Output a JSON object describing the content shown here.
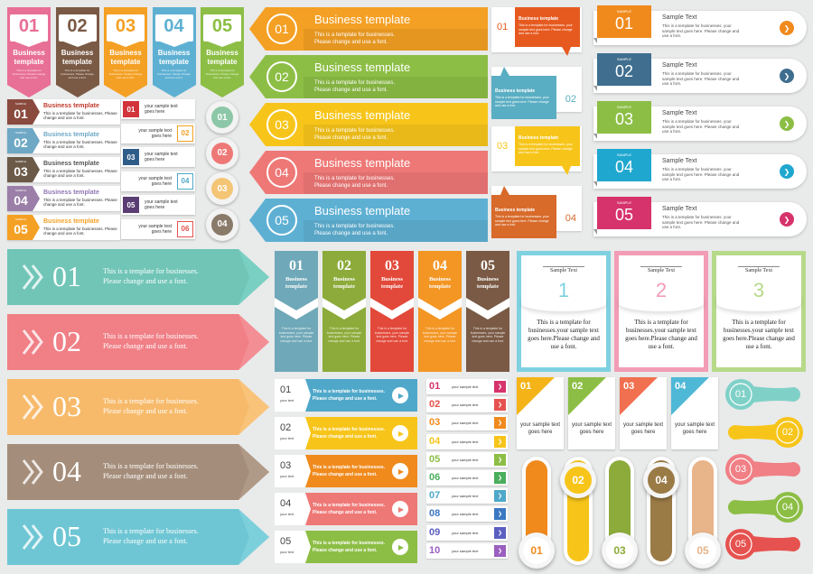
{
  "palette": {
    "pink": "#e86f95",
    "brown": "#7a5a45",
    "orange": "#f4a024",
    "blue": "#5eb0d3",
    "green": "#8cbe45",
    "red": "#e6524f",
    "yellow": "#f7cb1a",
    "coral": "#ee7876",
    "teal": "#4fa8c9",
    "gold": "#f2b418",
    "purple": "#8f75b3",
    "gray": "#b4b6b8",
    "ltblue": "#7fd1e0"
  },
  "icons": {
    "arrow": "chevron-right-icon",
    "play": "play-icon",
    "chev": "double-chevron-icon"
  },
  "topTabs": [
    {
      "num": "01",
      "title": "Business template",
      "body": "This is a template for businesses. Please change and use a font.",
      "color": "#e86f95"
    },
    {
      "num": "02",
      "title": "Business template",
      "body": "This is a template for businesses. Please change and use a font.",
      "color": "#7a5a45"
    },
    {
      "num": "03",
      "title": "Business template",
      "body": "This is a template for businesses. Please change and use a font.",
      "color": "#f4a024"
    },
    {
      "num": "04",
      "title": "Business template",
      "body": "This is a template for businesses. Please change and use a font.",
      "color": "#5eb0d3"
    },
    {
      "num": "05",
      "title": "Business template",
      "body": "This is a template for businesses. Please change and use a font.",
      "color": "#8cbe45"
    }
  ],
  "sampleList": [
    {
      "tag": "SAMPLE",
      "num": "01",
      "title": "Business template",
      "body": "This is a template for businesses. Please change and use a font.",
      "color": "#8a4a3e",
      "tcolor": "#c0392b"
    },
    {
      "tag": "SAMPLE",
      "num": "02",
      "title": "Business template",
      "body": "This is a template for businesses. Please change and use a font.",
      "color": "#6ea8c5",
      "tcolor": "#6ea8c5"
    },
    {
      "tag": "SAMPLE",
      "num": "03",
      "title": "Business template",
      "body": "This is a template for businesses. Please change and use a font.",
      "color": "#6b5a48",
      "tcolor": "#555555"
    },
    {
      "tag": "SAMPLE",
      "num": "04",
      "title": "Business template",
      "body": "This is a template for businesses. Please change and use a font.",
      "color": "#9b7fa8",
      "tcolor": "#8f75b3"
    },
    {
      "tag": "SAMPLE",
      "num": "05",
      "title": "Business template",
      "body": "This is a template for businesses. Please change and use a font.",
      "color": "#f4a024",
      "tcolor": "#f4a024"
    }
  ],
  "smallBoxes": [
    {
      "num": "01",
      "text": "your sample text goes here",
      "color": "#d2343b",
      "side": "left"
    },
    {
      "num": "02",
      "text": "your sample text goes here",
      "color": "#f4a024",
      "side": "right"
    },
    {
      "num": "03",
      "text": "your sample text goes here",
      "color": "#2f5d8a",
      "side": "left"
    },
    {
      "num": "04",
      "text": "your sample text goes here",
      "color": "#4fa8c9",
      "side": "right"
    },
    {
      "num": "05",
      "text": "your sample text goes here",
      "color": "#5a3e73",
      "side": "left"
    },
    {
      "num": "06",
      "text": "your sample text goes here",
      "color": "#e6524f",
      "side": "right"
    }
  ],
  "circles": [
    {
      "num": "01",
      "color": "#8cc8a8"
    },
    {
      "num": "02",
      "color": "#ee7876"
    },
    {
      "num": "03",
      "color": "#f4c574"
    },
    {
      "num": "04",
      "color": "#8a7a6a"
    }
  ],
  "arrowBanners": [
    {
      "num": "01",
      "title": "Business template",
      "body1": "This is a template for businesses.",
      "body2": "Please change and use a font.",
      "color": "#f4a024"
    },
    {
      "num": "02",
      "title": "Business template",
      "body1": "This is a template for businesses.",
      "body2": "Please change and use a font.",
      "color": "#8cbe45"
    },
    {
      "num": "03",
      "title": "Business template",
      "body1": "This is a template for businesses.",
      "body2": "Please change and use a font.",
      "color": "#f7c51a"
    },
    {
      "num": "04",
      "title": "Business template",
      "body1": "This is a template for businesses.",
      "body2": "Please change and use a font.",
      "color": "#ee7876"
    },
    {
      "num": "05",
      "title": "Business template",
      "body1": "This is a template for businesses.",
      "body2": "Please change and use a font.",
      "color": "#5eb0d3"
    }
  ],
  "speechCards": [
    {
      "num": "01",
      "title": "Business template",
      "body": "This is a template for businesses. your sample text goes here. Please change and use a font.",
      "color": "#e65a1f"
    },
    {
      "num": "02",
      "title": "Business template",
      "body": "This is a template for businesses. your sample text goes here. Please change and use a font.",
      "color": "#5aaec3"
    },
    {
      "num": "03",
      "title": "Business template",
      "body": "This is a template for businesses. your sample text goes here. Please change and use a font.",
      "color": "#f7c51a"
    },
    {
      "num": "04",
      "title": "Business template",
      "body": "This is a template for businesses. your sample text goes here. Please change and use a font.",
      "color": "#d86a2a"
    }
  ],
  "pillList": [
    {
      "tag": "SAMPLE",
      "num": "01",
      "title": "Sample Text",
      "body": "This is a template for businesses. your sample text goes here. Please change and use a font.",
      "color": "#f08a1d"
    },
    {
      "tag": "SAMPLE",
      "num": "02",
      "title": "Sample Text",
      "body": "This is a template for businesses. your sample text goes here. Please change and use a font.",
      "color": "#3f6e8f"
    },
    {
      "tag": "SAMPLE",
      "num": "03",
      "title": "Sample Text",
      "body": "This is a template for businesses. your sample text goes here. Please change and use a font.",
      "color": "#8cbe45"
    },
    {
      "tag": "SAMPLE",
      "num": "04",
      "title": "Sample Text",
      "body": "This is a template for businesses. your sample text goes here. Please change and use a font.",
      "color": "#1fa7cf"
    },
    {
      "tag": "SAMPLE",
      "num": "05",
      "title": "Sample Text",
      "body": "This is a template for businesses. your sample text goes here. Please change and use a font.",
      "color": "#d6336c"
    }
  ],
  "bigArrows": [
    {
      "num": "01",
      "body1": "This is a template for businesses.",
      "body2": "Please change and use a font.",
      "color": "#70c5b7",
      "tip": "#7ad0c3"
    },
    {
      "num": "02",
      "body1": "This is a template for businesses.",
      "body2": "Please change and use a font.",
      "color": "#f07f86",
      "tip": "#f49097"
    },
    {
      "num": "03",
      "body1": "This is a template for businesses.",
      "body2": "Please change and use a font.",
      "color": "#f7ba6a",
      "tip": "#f9c47c"
    },
    {
      "num": "04",
      "body1": "This is a template for businesses.",
      "body2": "Please change and use a font.",
      "color": "#a48d7a",
      "tip": "#b09a88"
    },
    {
      "num": "05",
      "body1": "This is a template for businesses.",
      "body2": "Please change and use a font.",
      "color": "#6ec6d4",
      "tip": "#7dd0dd"
    }
  ],
  "columnCards": [
    {
      "num": "01",
      "title": "Business template",
      "body": "This is a template for businesses. your sample text goes here. Please change and use a font.",
      "color": "#6fa8b8"
    },
    {
      "num": "02",
      "title": "Business template",
      "body": "This is a template for businesses. your sample text goes here. Please change and use a font.",
      "color": "#8cab3a"
    },
    {
      "num": "03",
      "title": "Business template",
      "body": "This is a template for businesses. your sample text goes here. Please change and use a font.",
      "color": "#e2493a"
    },
    {
      "num": "04",
      "title": "Business template",
      "body": "This is a template for businesses. your sample text goes here. Please change and use a font.",
      "color": "#f39624"
    },
    {
      "num": "05",
      "title": "Business template",
      "body": "This is a template for businesses. your sample text goes here. Please change and use a font.",
      "color": "#7a5a45"
    }
  ],
  "frameCards": [
    {
      "title": "Sample Text",
      "num": "1",
      "body": "This is a template for businesses.your sample text goes here.Please change and use a font.",
      "color": "#7fd1e0"
    },
    {
      "title": "Sample Text",
      "num": "2",
      "body": "This is a template for businesses.your sample text goes here.Please change and use a font.",
      "color": "#f29cb6"
    },
    {
      "title": "Sample Text",
      "num": "3",
      "body": "This is a template for businesses.your sample text goes here.Please change and use a font.",
      "color": "#b7d98a"
    }
  ],
  "playRows": [
    {
      "num": "01",
      "sub": "your text",
      "line1": "This is a template for businesses.",
      "line2": "Please change and use a font.",
      "color": "#4fa8c9"
    },
    {
      "num": "02",
      "sub": "your text",
      "line1": "This is a template for businesses.",
      "line2": "Please change and use a font.",
      "color": "#f7c51a"
    },
    {
      "num": "03",
      "sub": "your text",
      "line1": "This is a template for businesses.",
      "line2": "Please change and use a font.",
      "color": "#f08a1d"
    },
    {
      "num": "04",
      "sub": "your text",
      "line1": "This is a template for businesses.",
      "line2": "Please change and use a font.",
      "color": "#ee7876"
    },
    {
      "num": "05",
      "sub": "your text",
      "line1": "This is a template for businesses.",
      "line2": "Please change and use a font.",
      "color": "#8cbe45"
    }
  ],
  "numList": [
    {
      "num": "01",
      "text": "your sample text",
      "color": "#d6336c"
    },
    {
      "num": "02",
      "text": "your sample text",
      "color": "#e6524f"
    },
    {
      "num": "03",
      "text": "your sample text",
      "color": "#f08a1d"
    },
    {
      "num": "04",
      "text": "your sample text",
      "color": "#f7c51a"
    },
    {
      "num": "05",
      "text": "your sample text",
      "color": "#8cbe45"
    },
    {
      "num": "06",
      "text": "your sample text",
      "color": "#4aae5c"
    },
    {
      "num": "07",
      "text": "your sample text",
      "color": "#4fa8c9"
    },
    {
      "num": "08",
      "text": "your sample text",
      "color": "#3b78c2"
    },
    {
      "num": "09",
      "text": "your sample text",
      "color": "#5a5fc0"
    },
    {
      "num": "10",
      "text": "your sample text",
      "color": "#9a5fc0"
    }
  ],
  "flagCards": [
    {
      "num": "01",
      "text": "your sample text goes here",
      "color": "#f4b418"
    },
    {
      "num": "02",
      "text": "your sample text goes here",
      "color": "#8cbe45"
    },
    {
      "num": "03",
      "text": "your sample text goes here",
      "color": "#f07050"
    },
    {
      "num": "04",
      "text": "your sample text goes here",
      "color": "#4fb8d6"
    }
  ],
  "bars": [
    {
      "num": "01",
      "color": "#f08a1d",
      "pos": "bottom"
    },
    {
      "num": "02",
      "color": "#f7c51a",
      "pos": "top"
    },
    {
      "num": "03",
      "color": "#8cab3a",
      "pos": "bottom"
    },
    {
      "num": "04",
      "color": "#9a7a45",
      "pos": "top"
    },
    {
      "num": "05",
      "color": "#e8b48a",
      "pos": "bottom"
    }
  ],
  "balloons": [
    {
      "num": "01",
      "color": "#7fd1c8"
    },
    {
      "num": "02",
      "color": "#f7c51a"
    },
    {
      "num": "03",
      "color": "#f07f86"
    },
    {
      "num": "04",
      "color": "#8cbe45"
    },
    {
      "num": "05",
      "color": "#e6524f"
    }
  ]
}
